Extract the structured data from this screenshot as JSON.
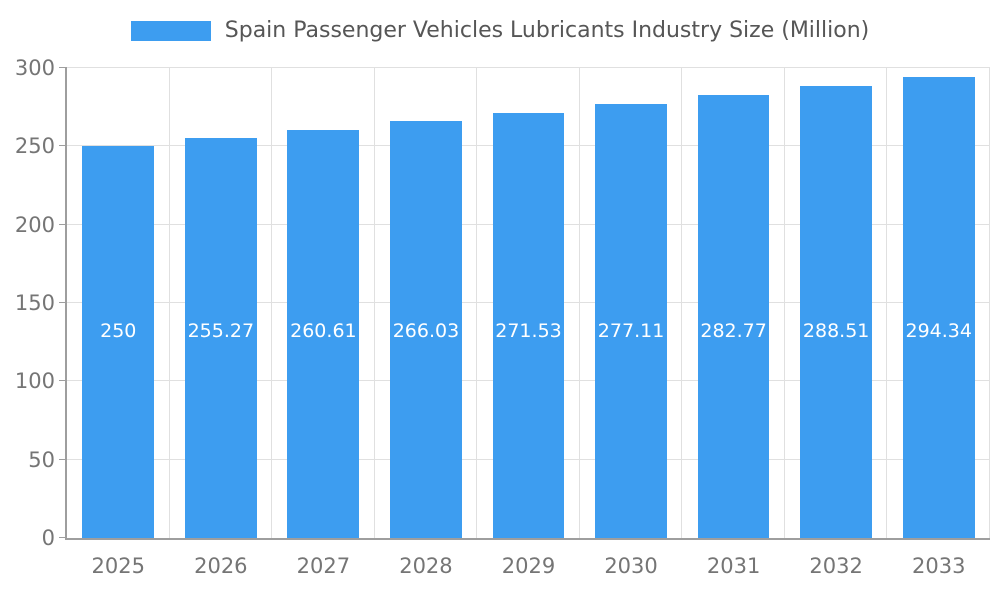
{
  "chart_data": {
    "type": "bar",
    "title": "Spain Passenger Vehicles Lubricants Industry Size (Million)",
    "categories": [
      "2025",
      "2026",
      "2027",
      "2028",
      "2029",
      "2030",
      "2031",
      "2032",
      "2033"
    ],
    "values": [
      250,
      255.27,
      260.61,
      266.03,
      271.53,
      277.11,
      282.77,
      288.51,
      294.34
    ],
    "value_labels": [
      "250",
      "255.27",
      "260.61",
      "266.03",
      "271.53",
      "277.11",
      "282.77",
      "288.51",
      "294.34"
    ],
    "ylim": [
      0,
      300
    ],
    "yticks": [
      0,
      50,
      100,
      150,
      200,
      250,
      300
    ],
    "grid": true,
    "legend_position": "top",
    "bar_color": "#3d9df0",
    "bar_label_color": "#ffffff",
    "axis_text_color": "#757575",
    "grid_color": "#e0e0e0",
    "legend_text_color": "#565656"
  }
}
